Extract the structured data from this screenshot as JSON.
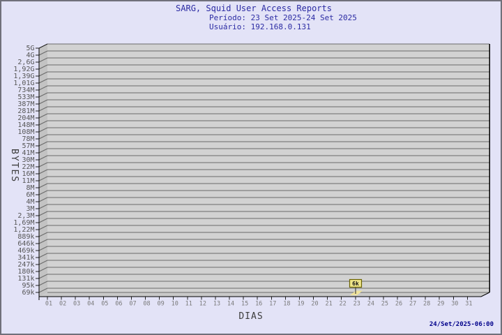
{
  "window": {
    "background": "#e3e3f7",
    "border_color": "#70707a"
  },
  "header": {
    "title": "SARG, Squid User Access Reports",
    "period_line": "Período: 23 Set 2025-24 Set 2025",
    "user_line": "Usuário: 192.168.0.131"
  },
  "chart_data": {
    "type": "area",
    "title": "SARG, Squid User Access Reports",
    "xlabel": "DIAS",
    "ylabel": "BYTES",
    "grid": "horizontal",
    "y_axis_order": "top-to-bottom-descending",
    "x_tick_labels": [
      "01",
      "02",
      "03",
      "04",
      "05",
      "06",
      "07",
      "08",
      "09",
      "10",
      "11",
      "12",
      "13",
      "14",
      "15",
      "16",
      "17",
      "18",
      "19",
      "20",
      "21",
      "22",
      "23",
      "24",
      "25",
      "26",
      "27",
      "28",
      "29",
      "30",
      "31"
    ],
    "y_tick_labels": [
      "5G",
      "4G",
      "2,6G",
      "1,92G",
      "1,39G",
      "1,01G",
      "734M",
      "533M",
      "387M",
      "281M",
      "204M",
      "148M",
      "108M",
      "78M",
      "57M",
      "41M",
      "30M",
      "22M",
      "16M",
      "11M",
      "8M",
      "6M",
      "4M",
      "3M",
      "2,3M",
      "1,69M",
      "1,22M",
      "889k",
      "646k",
      "469k",
      "341k",
      "247k",
      "180k",
      "131k",
      "95k",
      "69k"
    ],
    "series": [
      {
        "name": "192.168.0.131",
        "points": [
          {
            "day": "23",
            "label": "6k"
          }
        ]
      }
    ]
  },
  "footer": {
    "generated_at": "24/Set/2025-06:00"
  },
  "colors": {
    "background": "#e3e3f7",
    "plot_fill": "#d2d2d2",
    "wall_fill": "#c3c3c3",
    "floor_fill": "#c9c9c9",
    "grid_line": "#6a6a6a",
    "title_text": "#2b2ba3",
    "timestamp_text": "#00008b",
    "marker_fill": "#f0e68c",
    "marker_border": "#6b6300"
  }
}
